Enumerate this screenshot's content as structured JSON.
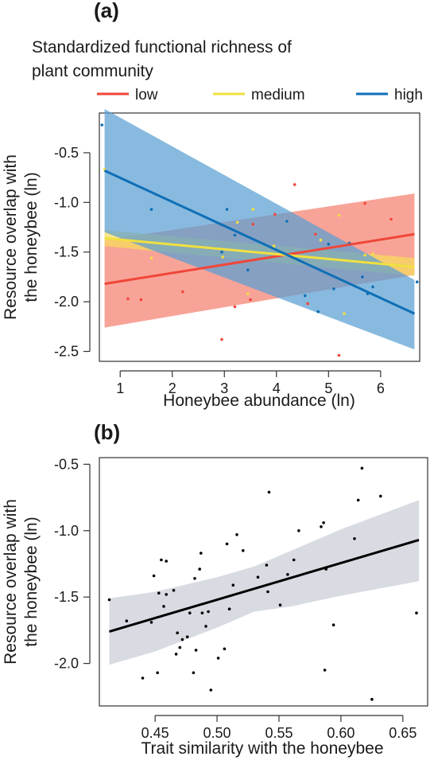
{
  "chart_data": [
    {
      "panel_label": "(a)",
      "type": "scatter",
      "legend": {
        "title": "Standardized functional richness of plant community",
        "placement": "top, above plot"
      },
      "xlabel": "Honeybee abundance (ln)",
      "ylabel": "Resource overlap with the honeybee (ln)",
      "xlim": [
        0.6,
        6.75
      ],
      "ylim": [
        -2.6,
        -0.1
      ],
      "xticks": [
        "1",
        "2",
        "3",
        "4",
        "5",
        "6"
      ],
      "yticks": [
        "-0.5",
        "-1.0",
        "-1.5",
        "-2.0",
        "-2.5"
      ],
      "grid": false,
      "series": [
        {
          "name": "low",
          "color": "#f0463a",
          "band_color": "#f5806f",
          "line": {
            "x": [
              0.7,
              6.65
            ],
            "y": [
              -1.82,
              -1.32
            ]
          },
          "band": {
            "x": [
              0.7,
              6.65
            ],
            "upper": [
              -1.38,
              -0.91
            ],
            "lower": [
              -2.26,
              -1.73
            ]
          },
          "points": [
            [
              1.15,
              -1.97
            ],
            [
              1.4,
              -1.98
            ],
            [
              2.2,
              -1.9
            ],
            [
              2.95,
              -2.38
            ],
            [
              3.2,
              -2.05
            ],
            [
              3.5,
              -1.98
            ],
            [
              3.55,
              -1.22
            ],
            [
              3.97,
              -1.12
            ],
            [
              4.35,
              -0.82
            ],
            [
              4.6,
              -2.02
            ],
            [
              4.75,
              -1.32
            ],
            [
              5.2,
              -2.54
            ],
            [
              5.7,
              -1.01
            ],
            [
              6.2,
              -1.17
            ]
          ]
        },
        {
          "name": "medium",
          "color": "#f0e040",
          "band_color": "#f7dc5c",
          "line": {
            "x": [
              0.7,
              6.65
            ],
            "y": [
              -1.36,
              -1.65
            ]
          },
          "band": {
            "x": [
              0.7,
              6.65
            ],
            "upper": [
              -1.28,
              -1.56
            ],
            "lower": [
              -1.44,
              -1.74
            ]
          },
          "points": [
            [
              0.7,
              -0.67
            ],
            [
              1.6,
              -1.56
            ],
            [
              2.97,
              -1.55
            ],
            [
              3.25,
              -1.2
            ],
            [
              3.45,
              -1.92
            ],
            [
              3.55,
              -1.07
            ],
            [
              3.95,
              -1.44
            ],
            [
              4.85,
              -1.38
            ],
            [
              5.2,
              -1.13
            ],
            [
              5.3,
              -2.12
            ],
            [
              5.7,
              -1.53
            ],
            [
              5.85,
              -1.52
            ]
          ]
        },
        {
          "name": "high",
          "color": "#0f6fb6",
          "band_color": "#5aa0d2",
          "line": {
            "x": [
              0.7,
              6.65
            ],
            "y": [
              -0.68,
              -2.12
            ]
          },
          "band": {
            "x": [
              0.7,
              6.65
            ],
            "upper": [
              -0.06,
              -1.78
            ],
            "lower": [
              -1.3,
              -2.48
            ]
          },
          "points": [
            [
              0.65,
              -0.22
            ],
            [
              1.6,
              -1.07
            ],
            [
              2.95,
              -1.5
            ],
            [
              3.05,
              -1.07
            ],
            [
              3.2,
              -1.33
            ],
            [
              3.45,
              -1.68
            ],
            [
              4.2,
              -1.19
            ],
            [
              4.55,
              -1.94
            ],
            [
              4.8,
              -2.1
            ],
            [
              5.0,
              -1.42
            ],
            [
              5.1,
              -1.87
            ],
            [
              5.4,
              -1.41
            ],
            [
              5.65,
              -1.75
            ],
            [
              5.75,
              -1.92
            ],
            [
              5.85,
              -1.85
            ],
            [
              6.7,
              -1.8
            ]
          ]
        }
      ]
    },
    {
      "panel_label": "(b)",
      "type": "scatter",
      "xlabel": "Trait similarity with the honeybee",
      "ylabel": "Resource overlap with the honeybee (ln)",
      "xlim": [
        0.405,
        0.67
      ],
      "ylim": [
        -2.32,
        -0.45
      ],
      "xticks": [
        "0.45",
        "0.50",
        "0.55",
        "0.60",
        "0.65"
      ],
      "yticks": [
        "-0.5",
        "-1.0",
        "-1.5",
        "-2.0"
      ],
      "grid": false,
      "series": [
        {
          "color": "#000000",
          "band_color": "#d8dbe2",
          "line": {
            "x": [
              0.413,
              0.663
            ],
            "y": [
              -1.76,
              -1.07
            ]
          },
          "band": {
            "x": [
              0.413,
              0.45,
              0.5,
              0.53,
              0.56,
              0.6,
              0.663
            ],
            "upper": [
              -1.51,
              -1.46,
              -1.35,
              -1.27,
              -1.15,
              -0.99,
              -0.77
            ],
            "lower": [
              -2.01,
              -1.91,
              -1.73,
              -1.61,
              -1.57,
              -1.49,
              -1.38
            ]
          },
          "points": [
            [
              0.413,
              -1.52
            ],
            [
              0.427,
              -1.68
            ],
            [
              0.44,
              -2.11
            ],
            [
              0.447,
              -1.69
            ],
            [
              0.449,
              -1.34
            ],
            [
              0.452,
              -2.07
            ],
            [
              0.453,
              -1.47
            ],
            [
              0.455,
              -1.22
            ],
            [
              0.457,
              -1.57
            ],
            [
              0.459,
              -1.48
            ],
            [
              0.459,
              -1.23
            ],
            [
              0.465,
              -1.45
            ],
            [
              0.467,
              -1.93
            ],
            [
              0.468,
              -1.77
            ],
            [
              0.47,
              -1.88
            ],
            [
              0.472,
              -1.82
            ],
            [
              0.476,
              -1.8
            ],
            [
              0.478,
              -1.62
            ],
            [
              0.481,
              -2.07
            ],
            [
              0.482,
              -1.36
            ],
            [
              0.483,
              -1.9
            ],
            [
              0.486,
              -1.29
            ],
            [
              0.487,
              -1.17
            ],
            [
              0.488,
              -1.62
            ],
            [
              0.491,
              -1.72
            ],
            [
              0.493,
              -1.61
            ],
            [
              0.495,
              -2.2
            ],
            [
              0.501,
              -1.96
            ],
            [
              0.506,
              -1.89
            ],
            [
              0.508,
              -1.1
            ],
            [
              0.51,
              -1.59
            ],
            [
              0.513,
              -1.41
            ],
            [
              0.516,
              -1.03
            ],
            [
              0.521,
              -1.15
            ],
            [
              0.533,
              -1.35
            ],
            [
              0.54,
              -1.26
            ],
            [
              0.541,
              -1.46
            ],
            [
              0.542,
              -0.71
            ],
            [
              0.551,
              -1.56
            ],
            [
              0.557,
              -1.33
            ],
            [
              0.562,
              -1.22
            ],
            [
              0.566,
              -1.0
            ],
            [
              0.584,
              -0.97
            ],
            [
              0.586,
              -0.94
            ],
            [
              0.587,
              -2.05
            ],
            [
              0.588,
              -1.29
            ],
            [
              0.594,
              -1.71
            ],
            [
              0.611,
              -1.06
            ],
            [
              0.614,
              -0.77
            ],
            [
              0.617,
              -0.53
            ],
            [
              0.625,
              -2.27
            ],
            [
              0.632,
              -0.74
            ],
            [
              0.661,
              -1.62
            ]
          ]
        }
      ]
    }
  ]
}
